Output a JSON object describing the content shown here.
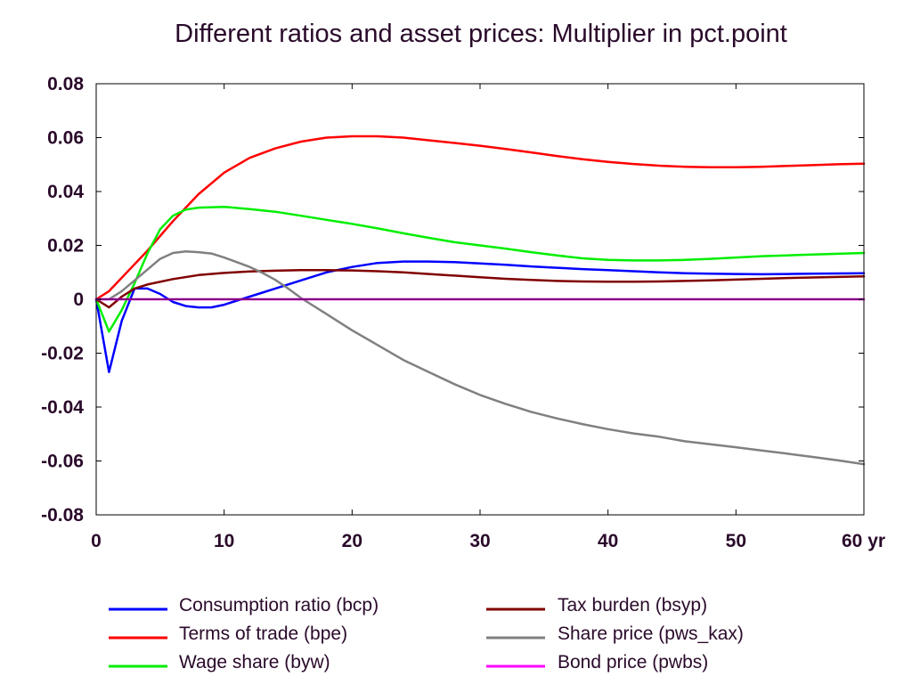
{
  "chart_data": {
    "type": "line",
    "title": "Different ratios and asset prices: Multiplier in pct.point",
    "xlabel": "",
    "ylabel": "",
    "x_unit_label": "yr",
    "xlim": [
      0,
      60
    ],
    "ylim": [
      -0.08,
      0.08
    ],
    "x_ticks": [
      0,
      10,
      20,
      30,
      40,
      50,
      60
    ],
    "x_tick_labels": [
      "0",
      "10",
      "20",
      "30",
      "40",
      "50",
      "60 yr"
    ],
    "y_ticks": [
      0.08,
      0.06,
      0.04,
      0.02,
      0,
      -0.02,
      -0.04,
      -0.06,
      -0.08
    ],
    "y_tick_labels": [
      "0.08",
      "0.06",
      "0.04",
      "0.02",
      "0",
      "-0.02",
      "-0.04",
      "-0.06",
      "-0.08"
    ],
    "grid": false,
    "legend_position": "bottom",
    "series": [
      {
        "name": "Consumption ratio (bcp)",
        "color": "#0000ff",
        "points": [
          [
            0,
            0
          ],
          [
            1,
            -0.027
          ],
          [
            2,
            -0.008
          ],
          [
            3,
            0.004
          ],
          [
            4,
            0.004
          ],
          [
            5,
            0.002
          ],
          [
            6,
            -0.001
          ],
          [
            7,
            -0.0025
          ],
          [
            8,
            -0.003
          ],
          [
            9,
            -0.003
          ],
          [
            10,
            -0.002
          ],
          [
            12,
            0.001
          ],
          [
            14,
            0.004
          ],
          [
            16,
            0.007
          ],
          [
            18,
            0.01
          ],
          [
            20,
            0.012
          ],
          [
            22,
            0.0135
          ],
          [
            24,
            0.014
          ],
          [
            26,
            0.014
          ],
          [
            28,
            0.0138
          ],
          [
            30,
            0.0133
          ],
          [
            32,
            0.0128
          ],
          [
            34,
            0.0122
          ],
          [
            36,
            0.0117
          ],
          [
            38,
            0.0112
          ],
          [
            40,
            0.0108
          ],
          [
            42,
            0.0104
          ],
          [
            44,
            0.01
          ],
          [
            46,
            0.0097
          ],
          [
            48,
            0.0095
          ],
          [
            50,
            0.0094
          ],
          [
            52,
            0.0093
          ],
          [
            54,
            0.0094
          ],
          [
            56,
            0.0095
          ],
          [
            58,
            0.0096
          ],
          [
            60,
            0.0097
          ]
        ]
      },
      {
        "name": "Terms of trade (bpe)",
        "color": "#ff0000",
        "points": [
          [
            0,
            0
          ],
          [
            1,
            0.003
          ],
          [
            2,
            0.008
          ],
          [
            4,
            0.018
          ],
          [
            6,
            0.029
          ],
          [
            8,
            0.039
          ],
          [
            10,
            0.047
          ],
          [
            12,
            0.0525
          ],
          [
            14,
            0.056
          ],
          [
            16,
            0.0585
          ],
          [
            18,
            0.06
          ],
          [
            20,
            0.0605
          ],
          [
            22,
            0.0605
          ],
          [
            24,
            0.06
          ],
          [
            26,
            0.059
          ],
          [
            28,
            0.058
          ],
          [
            30,
            0.057
          ],
          [
            32,
            0.0558
          ],
          [
            34,
            0.0545
          ],
          [
            36,
            0.0532
          ],
          [
            38,
            0.052
          ],
          [
            40,
            0.051
          ],
          [
            42,
            0.0502
          ],
          [
            44,
            0.0496
          ],
          [
            46,
            0.0492
          ],
          [
            48,
            0.049
          ],
          [
            50,
            0.049
          ],
          [
            52,
            0.0492
          ],
          [
            54,
            0.0495
          ],
          [
            56,
            0.0498
          ],
          [
            58,
            0.0501
          ],
          [
            60,
            0.0503
          ]
        ]
      },
      {
        "name": "Wage share (byw)",
        "color": "#00ee00",
        "points": [
          [
            0,
            0
          ],
          [
            1,
            -0.012
          ],
          [
            2,
            -0.004
          ],
          [
            3,
            0.006
          ],
          [
            4,
            0.017
          ],
          [
            5,
            0.026
          ],
          [
            6,
            0.031
          ],
          [
            7,
            0.0333
          ],
          [
            8,
            0.034
          ],
          [
            10,
            0.0343
          ],
          [
            12,
            0.0335
          ],
          [
            14,
            0.0325
          ],
          [
            16,
            0.031
          ],
          [
            18,
            0.0295
          ],
          [
            20,
            0.028
          ],
          [
            22,
            0.0263
          ],
          [
            24,
            0.0245
          ],
          [
            26,
            0.0228
          ],
          [
            28,
            0.0212
          ],
          [
            30,
            0.02
          ],
          [
            32,
            0.0188
          ],
          [
            34,
            0.0175
          ],
          [
            36,
            0.0163
          ],
          [
            38,
            0.0152
          ],
          [
            40,
            0.0146
          ],
          [
            42,
            0.0144
          ],
          [
            44,
            0.0144
          ],
          [
            46,
            0.0146
          ],
          [
            48,
            0.015
          ],
          [
            50,
            0.0155
          ],
          [
            52,
            0.016
          ],
          [
            54,
            0.0163
          ],
          [
            56,
            0.0166
          ],
          [
            58,
            0.0169
          ],
          [
            60,
            0.0172
          ]
        ]
      },
      {
        "name": "Tax burden (bsyp)",
        "color": "#800000",
        "points": [
          [
            0,
            0
          ],
          [
            1,
            -0.003
          ],
          [
            2,
            0.001
          ],
          [
            3,
            0.004
          ],
          [
            4,
            0.0055
          ],
          [
            6,
            0.0075
          ],
          [
            8,
            0.009
          ],
          [
            10,
            0.0098
          ],
          [
            12,
            0.0103
          ],
          [
            14,
            0.0106
          ],
          [
            16,
            0.0108
          ],
          [
            18,
            0.0108
          ],
          [
            20,
            0.0107
          ],
          [
            22,
            0.0104
          ],
          [
            24,
            0.01
          ],
          [
            26,
            0.0094
          ],
          [
            28,
            0.0088
          ],
          [
            30,
            0.0082
          ],
          [
            32,
            0.0076
          ],
          [
            34,
            0.0072
          ],
          [
            36,
            0.0068
          ],
          [
            38,
            0.0066
          ],
          [
            40,
            0.0065
          ],
          [
            42,
            0.0065
          ],
          [
            44,
            0.0066
          ],
          [
            46,
            0.0068
          ],
          [
            48,
            0.007
          ],
          [
            50,
            0.0073
          ],
          [
            52,
            0.0076
          ],
          [
            54,
            0.0079
          ],
          [
            56,
            0.0081
          ],
          [
            58,
            0.0083
          ],
          [
            60,
            0.0085
          ]
        ]
      },
      {
        "name": "Share price (pws_kax)",
        "color": "#808080",
        "points": [
          [
            0,
            0
          ],
          [
            1,
            0
          ],
          [
            2,
            0.003
          ],
          [
            3,
            0.007
          ],
          [
            4,
            0.011
          ],
          [
            5,
            0.015
          ],
          [
            6,
            0.0172
          ],
          [
            7,
            0.0178
          ],
          [
            8,
            0.0175
          ],
          [
            9,
            0.017
          ],
          [
            10,
            0.0155
          ],
          [
            11,
            0.0138
          ],
          [
            12,
            0.012
          ],
          [
            13,
            0.0098
          ],
          [
            14,
            0.0072
          ],
          [
            15,
            0.004
          ],
          [
            16,
            0.0005
          ],
          [
            18,
            -0.0055
          ],
          [
            20,
            -0.0115
          ],
          [
            22,
            -0.017
          ],
          [
            24,
            -0.0225
          ],
          [
            26,
            -0.027
          ],
          [
            28,
            -0.0315
          ],
          [
            30,
            -0.0355
          ],
          [
            32,
            -0.0388
          ],
          [
            34,
            -0.0418
          ],
          [
            36,
            -0.0442
          ],
          [
            38,
            -0.0463
          ],
          [
            40,
            -0.0482
          ],
          [
            42,
            -0.0498
          ],
          [
            44,
            -0.051
          ],
          [
            46,
            -0.0527
          ],
          [
            48,
            -0.0538
          ],
          [
            50,
            -0.0549
          ],
          [
            52,
            -0.0561
          ],
          [
            54,
            -0.0573
          ],
          [
            56,
            -0.0585
          ],
          [
            58,
            -0.0598
          ],
          [
            60,
            -0.0612
          ]
        ]
      },
      {
        "name": "Bond price (pwbs)",
        "color": "#ff00ff",
        "points": [
          [
            0,
            0
          ],
          [
            60,
            0
          ]
        ]
      }
    ]
  }
}
